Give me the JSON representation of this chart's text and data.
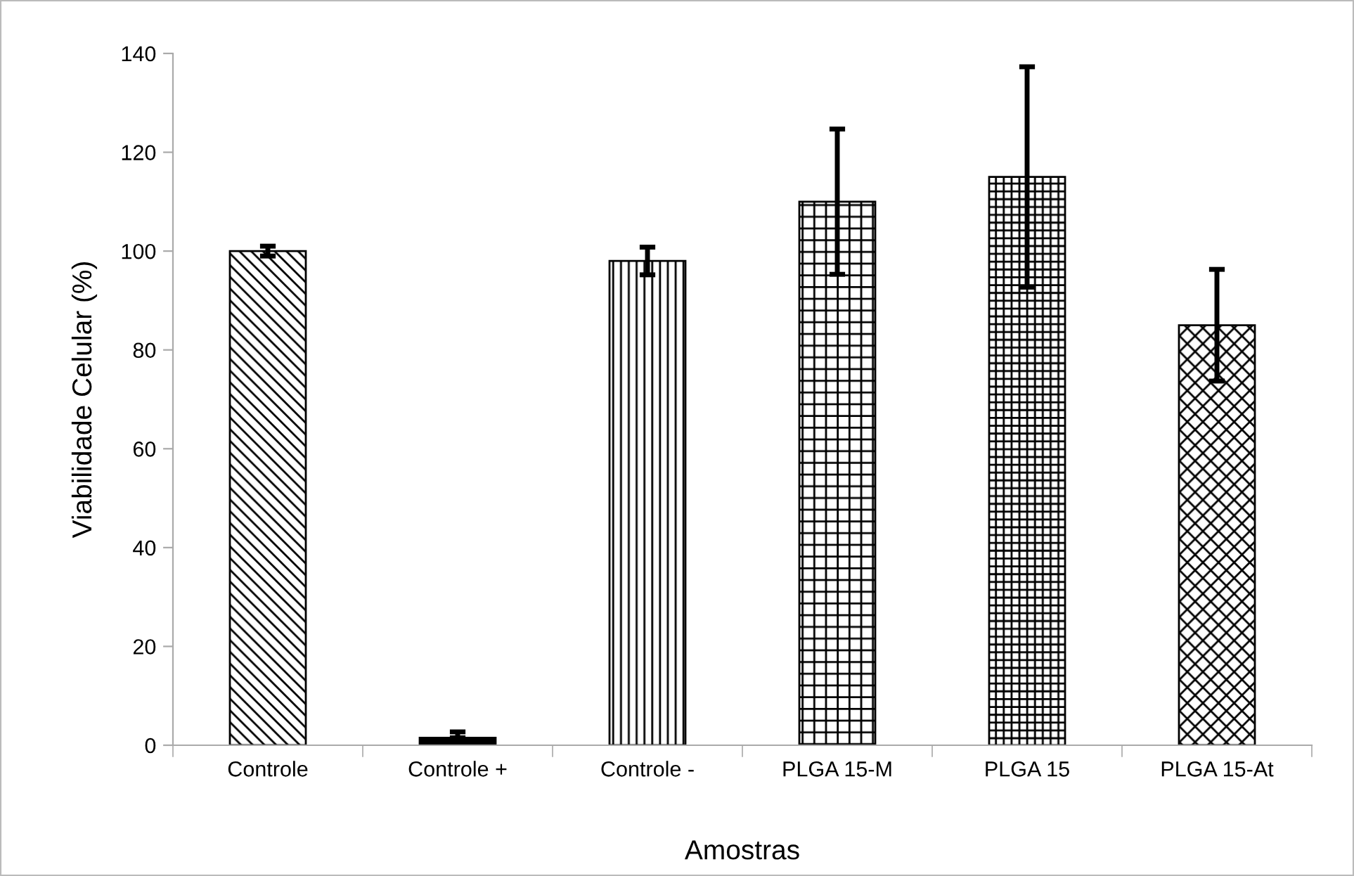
{
  "chart_data": {
    "type": "bar",
    "xlabel": "Amostras",
    "ylabel": "Viabilidade Celular (%)",
    "categories": [
      "Controle",
      "Controle +",
      "Controle -",
      "PLGA 15-M",
      "PLGA 15",
      "PLGA 15-At"
    ],
    "values": [
      100,
      1.5,
      98,
      110,
      115,
      85
    ],
    "errors": [
      1,
      [
        1.5,
        2.7
      ],
      2.8,
      14.7,
      22.3,
      11.3
    ],
    "colors": [
      "#000000",
      "#000000",
      "#000000",
      "#000000",
      "#000000",
      "#000000"
    ],
    "ylim": [
      0,
      140
    ],
    "yticks": [
      0,
      20,
      40,
      60,
      80,
      100,
      120,
      140
    ],
    "grid": false,
    "legend": false
  }
}
